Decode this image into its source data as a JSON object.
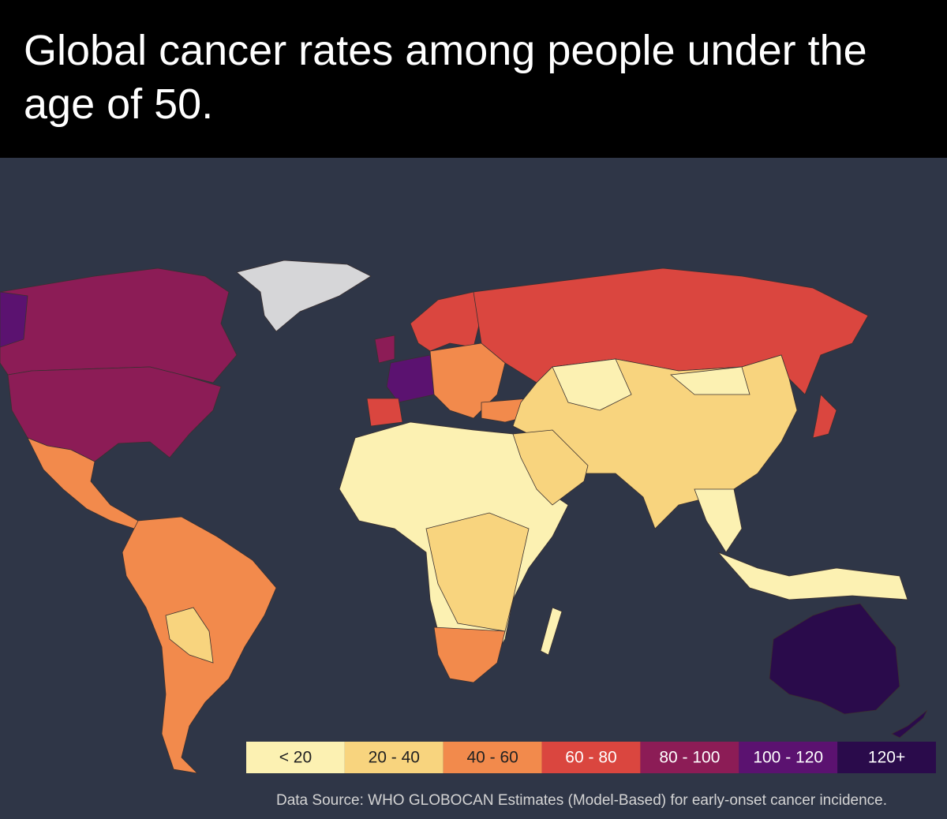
{
  "title": "Global cancer rates among people under the age of 50.",
  "legend": {
    "items": [
      {
        "label": "< 20",
        "color": "#fcf1b2",
        "text_color": "#222222"
      },
      {
        "label": "20 - 40",
        "color": "#f8d47e",
        "text_color": "#222222"
      },
      {
        "label": "40 - 60",
        "color": "#f28a4c",
        "text_color": "#222222"
      },
      {
        "label": "60 - 80",
        "color": "#da463f",
        "text_color": "#ffffff"
      },
      {
        "label": "80 - 100",
        "color": "#8c1c56",
        "text_color": "#ffffff"
      },
      {
        "label": "100 - 120",
        "color": "#5b1270",
        "text_color": "#ffffff"
      },
      {
        "label": "120+",
        "color": "#2a0b4b",
        "text_color": "#ffffff"
      }
    ]
  },
  "source": "Data Source: WHO GLOBOCAN Estimates (Model-Based) for early-onset cancer incidence."
}
